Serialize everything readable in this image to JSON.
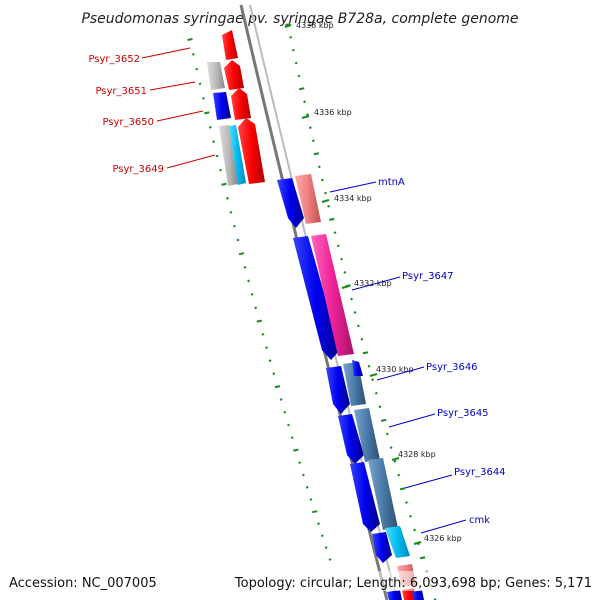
{
  "title": "Pseudomonas syringae pv. syringae B728a, complete genome",
  "footer": {
    "accession": "Accession: NC_007005",
    "topology": "Topology: circular; Length: 6,093,698 bp; Genes: 5,171"
  },
  "ticks": [
    "4338 kbp",
    "4336 kbp",
    "4334 kbp",
    "4332 kbp",
    "4330 kbp",
    "4328 kbp",
    "4326 kbp"
  ],
  "genes_left": [
    "Psyr_3652",
    "Psyr_3651",
    "Psyr_3650",
    "Psyr_3649"
  ],
  "genes_right": [
    "mtnA",
    "Psyr_3647",
    "Psyr_3646",
    "Psyr_3645",
    "Psyr_3644",
    "cmk"
  ],
  "colors": {
    "left_label": "#cc0000",
    "right_label": "#0000cc",
    "red": "#ff0000",
    "blue": "#0000ee",
    "cyan": "#00bbee",
    "pink": "#ee2299",
    "salmon": "#f08080",
    "grey": "#bbbbbb",
    "steel": "#4a7aa8",
    "backbone": "#888888",
    "dots": "#1a8a1a"
  }
}
